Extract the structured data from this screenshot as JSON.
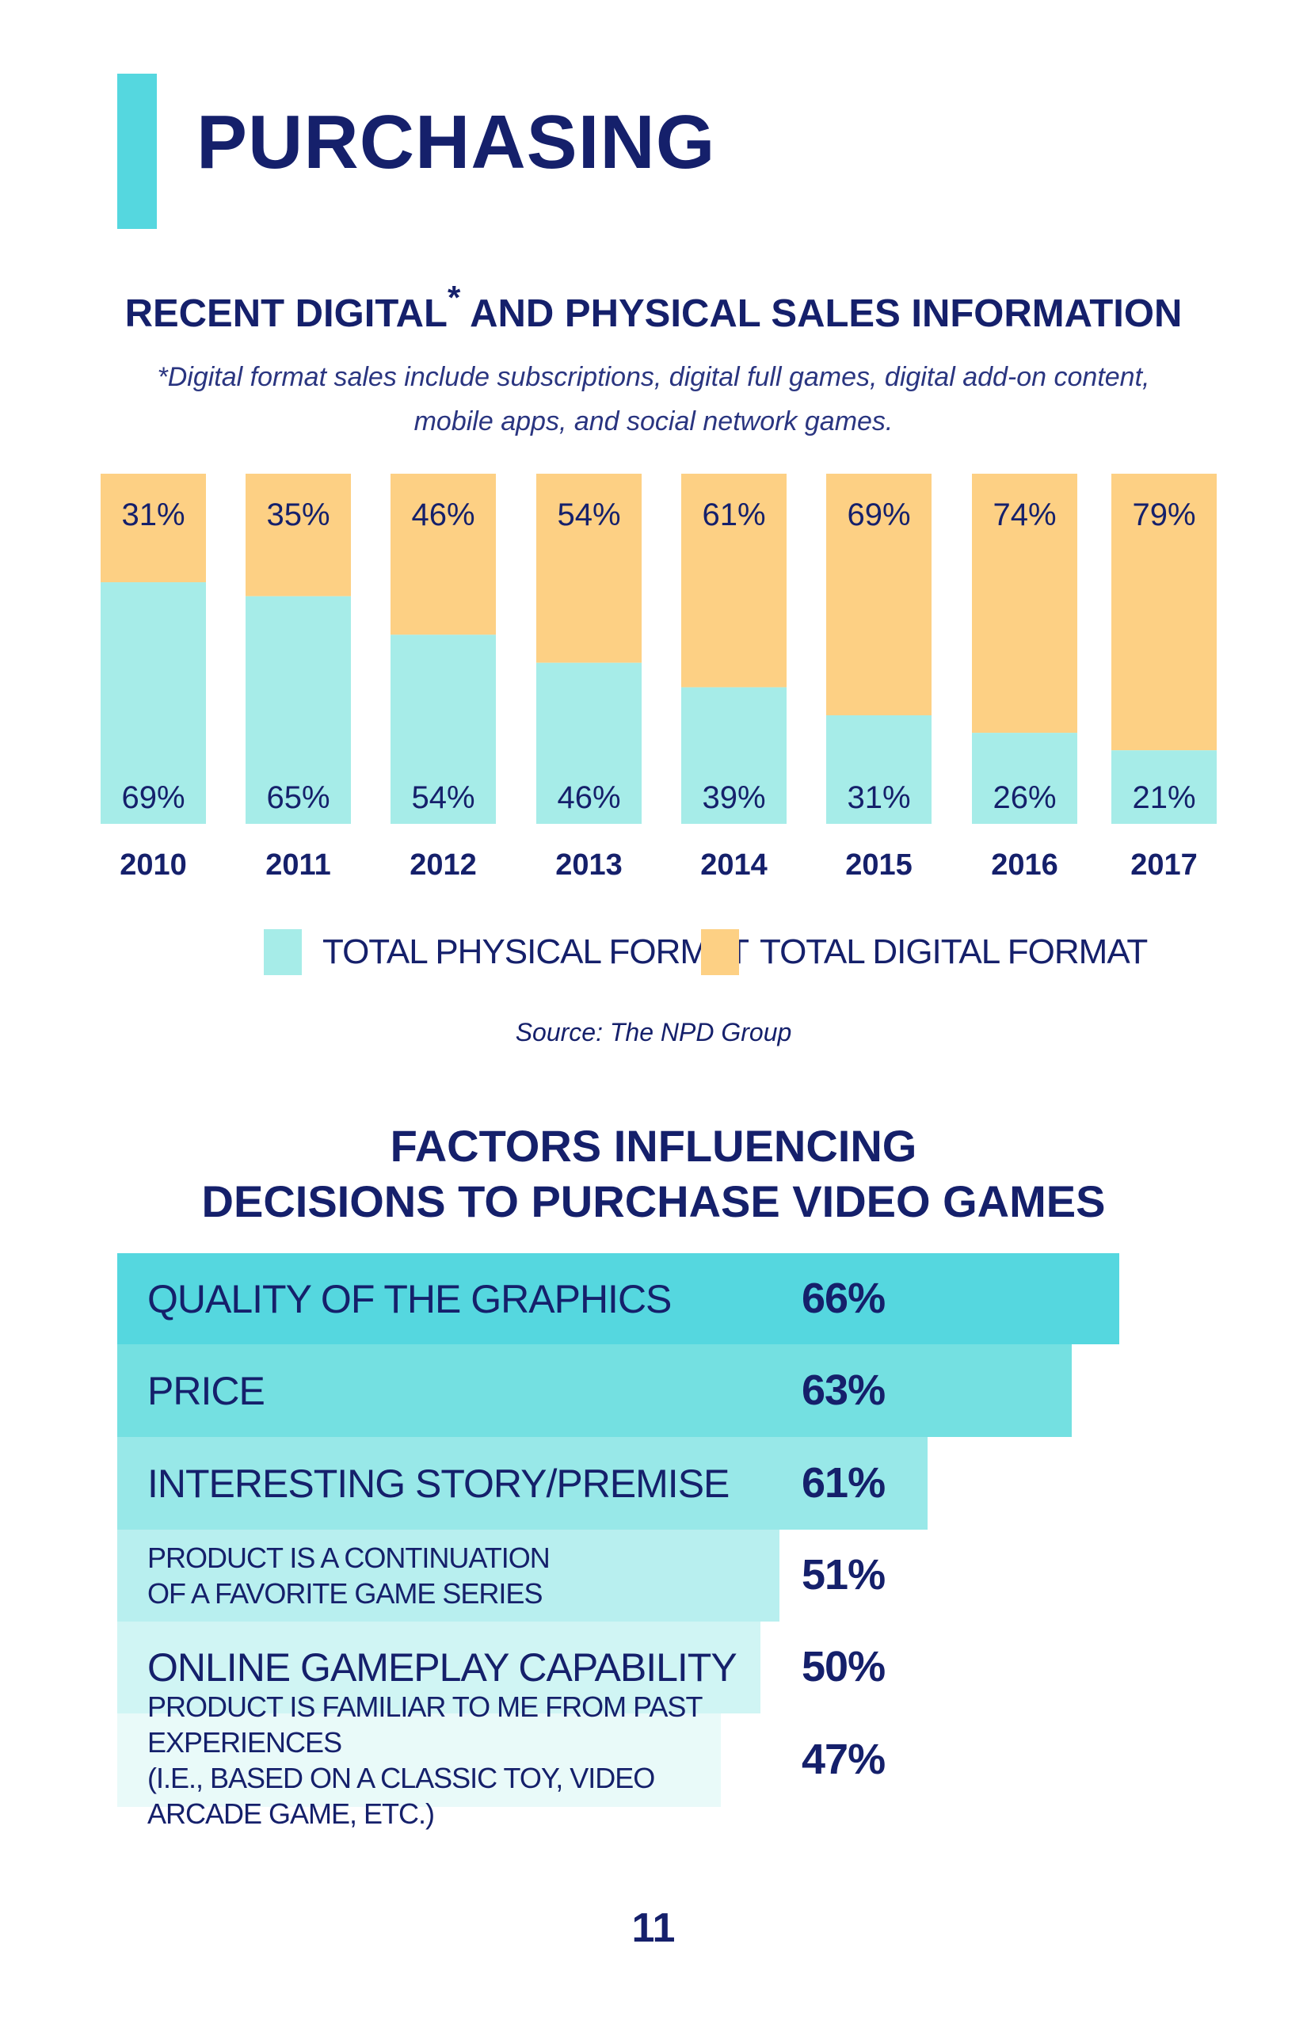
{
  "page": {
    "title": "PURCHASING",
    "number": "11"
  },
  "colors": {
    "accent": "#55d7df",
    "physical": "#a6ece8",
    "digital": "#fdd084",
    "text": "#15206b",
    "factor_fills": [
      "#55d7df",
      "#74e0e1",
      "#98e8e8",
      "#b8efef",
      "#d0f5f4",
      "#e9faf9"
    ]
  },
  "chart_data": [
    {
      "type": "bar",
      "stacked": true,
      "normalized": true,
      "title": "RECENT DIGITAL",
      "title_asterisk": "*",
      "title_rest": "AND PHYSICAL SALES INFORMATION",
      "footnote": "*Digital format sales include subscriptions, digital full games, digital add-on content, mobile apps, and social network games.",
      "categories": [
        "2010",
        "2011",
        "2012",
        "2013",
        "2014",
        "2015",
        "2016",
        "2017"
      ],
      "series": [
        {
          "name": "TOTAL PHYSICAL FORMAT",
          "values": [
            69,
            65,
            54,
            46,
            39,
            31,
            26,
            21
          ],
          "labels": [
            "69%",
            "65%",
            "54%",
            "46%",
            "39%",
            "31%",
            "26%",
            "21%"
          ]
        },
        {
          "name": "TOTAL DIGITAL FORMAT",
          "values": [
            31,
            35,
            46,
            54,
            61,
            69,
            74,
            79
          ],
          "labels": [
            "31%",
            "35%",
            "46%",
            "54%",
            "61%",
            "69%",
            "74%",
            "79%"
          ]
        }
      ],
      "ylim": [
        0,
        100
      ],
      "legend": "bottom",
      "source": "Source: The NPD Group"
    },
    {
      "type": "bar",
      "orientation": "horizontal",
      "title": "FACTORS INFLUENCING\nDECISIONS TO PURCHASE VIDEO GAMES",
      "categories": [
        "QUALITY OF THE GRAPHICS",
        "PRICE",
        "INTERESTING STORY/PREMISE",
        "PRODUCT IS A CONTINUATION\nOF A FAVORITE GAME SERIES",
        "ONLINE GAMEPLAY CAPABILITY",
        "PRODUCT IS FAMILIAR TO ME FROM PAST EXPERIENCES\n(I.E., BASED ON A CLASSIC TOY, VIDEO ARCADE GAME, ETC.)"
      ],
      "values": [
        66,
        63,
        61,
        51,
        50,
        47
      ],
      "labels": [
        "66%",
        "63%",
        "61%",
        "51%",
        "50%",
        "47%"
      ]
    }
  ]
}
